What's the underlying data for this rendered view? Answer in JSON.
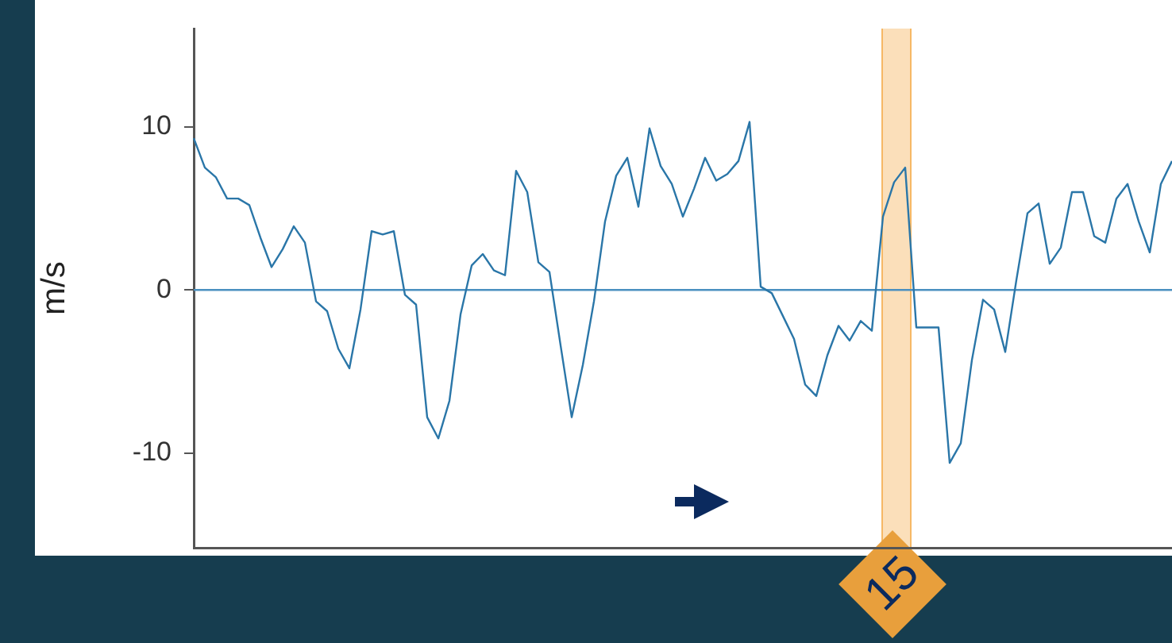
{
  "chart_data": {
    "type": "line",
    "ylabel": "m/s",
    "ylim": [
      -15.8,
      16
    ],
    "yticks": [
      -10,
      0,
      10
    ],
    "tick_labels": "y",
    "grid": false,
    "legend": false,
    "categories": [
      null,
      null,
      null,
      null,
      null,
      null,
      null,
      null,
      null,
      null,
      null,
      null,
      null,
      null,
      null,
      null,
      null,
      null,
      null,
      null,
      null,
      null,
      null,
      null,
      null,
      null,
      null,
      null,
      null,
      null,
      null,
      null,
      null,
      null,
      null,
      null,
      null,
      null,
      null,
      null,
      null,
      null,
      null,
      null,
      null,
      null,
      null,
      null,
      null,
      null,
      null,
      null,
      null,
      null,
      null,
      null,
      null,
      null,
      null,
      null,
      null,
      null,
      null,
      null,
      null,
      null,
      null,
      null,
      null,
      null,
      null,
      null,
      null,
      null,
      null,
      null,
      null,
      null,
      null,
      null,
      null,
      null,
      null,
      null,
      null,
      null,
      null,
      null,
      null
    ],
    "series": [
      {
        "color": "#2a76a8",
        "values": [
          9.3,
          7.5,
          6.9,
          5.6,
          5.6,
          5.2,
          3.2,
          1.4,
          2.5,
          3.9,
          2.9,
          -0.7,
          -1.3,
          -3.6,
          -4.8,
          -1.2,
          3.6,
          3.4,
          3.6,
          -0.3,
          -0.9,
          -7.8,
          -9.1,
          -6.8,
          -1.5,
          1.5,
          2.2,
          1.2,
          0.9,
          7.3,
          6.0,
          1.7,
          1.1,
          -3.4,
          -7.8,
          -4.6,
          -0.7,
          4.2,
          7.0,
          8.1,
          5.1,
          9.9,
          7.6,
          6.5,
          4.5,
          6.2,
          8.1,
          6.7,
          7.1,
          7.9,
          10.3,
          0.2,
          -0.2,
          -1.6,
          -3.0,
          -5.8,
          -6.5,
          -4.0,
          -2.2,
          -3.1,
          -1.9,
          -2.5,
          4.5,
          6.6,
          7.5,
          -2.3,
          -2.3,
          -2.3,
          -10.6,
          -9.4,
          -4.3,
          -0.6,
          -1.2,
          -3.8,
          0.6,
          4.7,
          5.3,
          1.6,
          2.6,
          6.0,
          6.0,
          3.3,
          2.9,
          5.6,
          6.5,
          4.2,
          2.3,
          6.5,
          7.9
        ]
      }
    ],
    "ref_lines": [
      {
        "axis": "y",
        "value": 0,
        "color": "#4a90c0"
      }
    ],
    "annotations": [
      "15"
    ]
  }
}
